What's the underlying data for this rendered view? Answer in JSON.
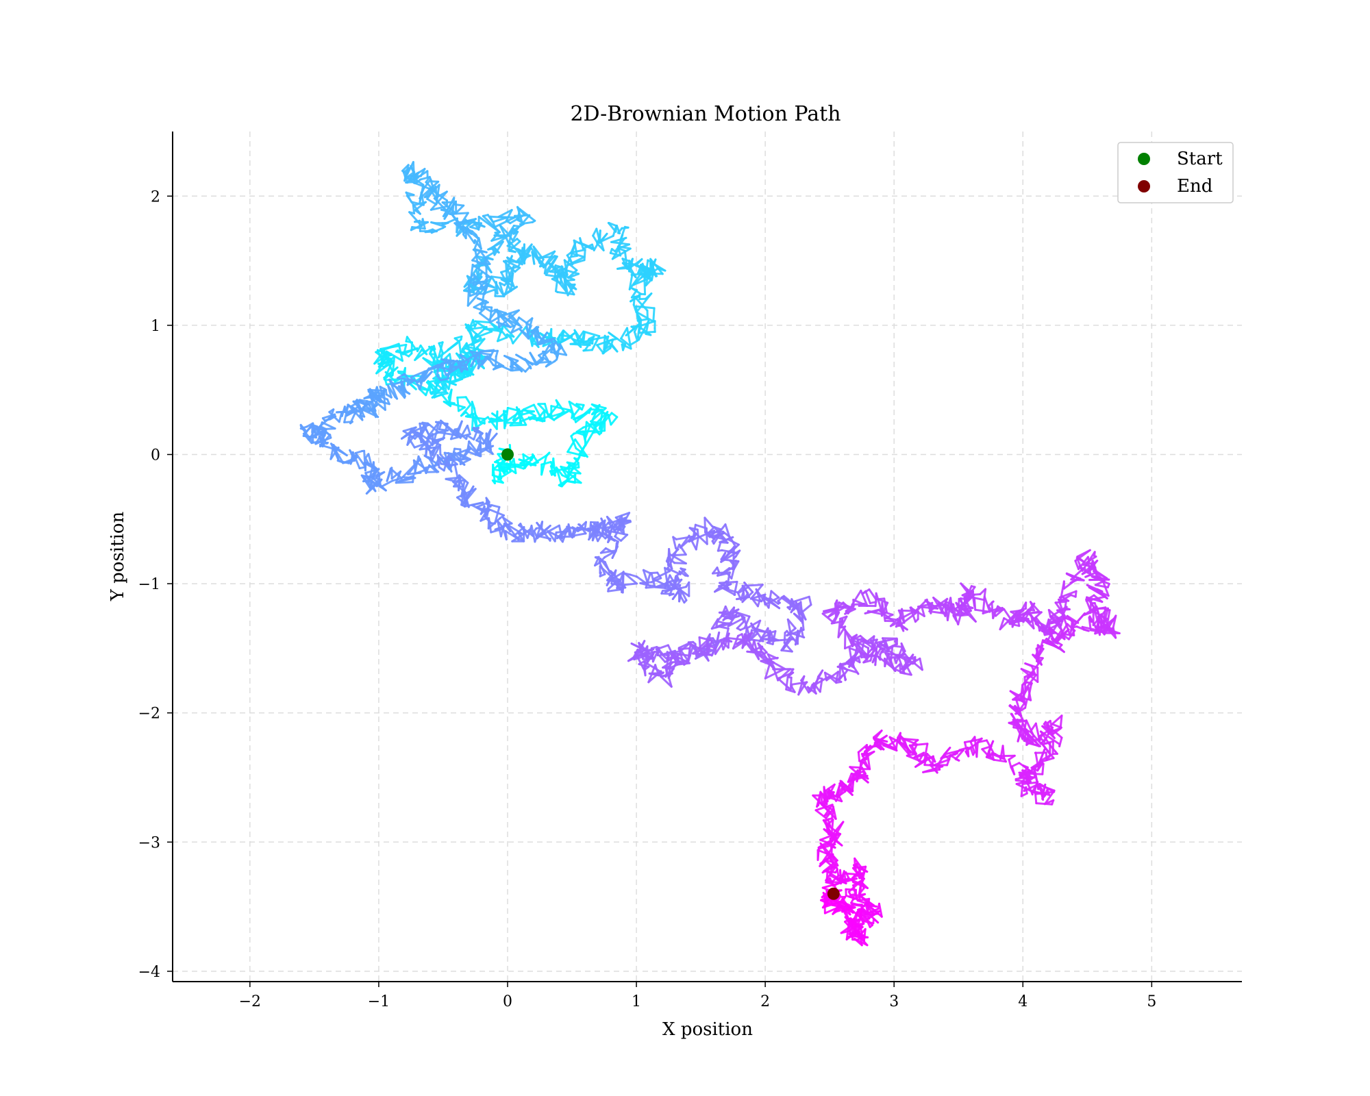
{
  "chart_data": {
    "type": "line",
    "title": "2D-Brownian Motion Path",
    "xlabel": "X position",
    "ylabel": "Y position",
    "xlim": [
      -2.6,
      5.7
    ],
    "ylim": [
      -4.08,
      2.5
    ],
    "xticks": [
      -2,
      -1,
      0,
      1,
      2,
      3,
      4,
      5
    ],
    "yticks": [
      -4,
      -3,
      -2,
      -1,
      0,
      1,
      2
    ],
    "xtick_labels": [
      "−2",
      "−1",
      "0",
      "1",
      "2",
      "3",
      "4",
      "5"
    ],
    "ytick_labels": [
      "−4",
      "−3",
      "−2",
      "−1",
      "0",
      "1",
      "2"
    ],
    "grid": true,
    "grid_style": "dashed",
    "legend_position": "top-right",
    "colormap": "cool",
    "colormap_start": "#00ffff",
    "colormap_end": "#ff00ff",
    "path_waypoints": [
      [
        0,
        0
      ],
      [
        -0.1,
        -0.15
      ],
      [
        0.25,
        -0.05
      ],
      [
        0.5,
        -0.2
      ],
      [
        0.55,
        0.1
      ],
      [
        0.8,
        0.3
      ],
      [
        0.4,
        0.35
      ],
      [
        0.1,
        0.3
      ],
      [
        -0.2,
        0.25
      ],
      [
        -0.5,
        0.5
      ],
      [
        -0.9,
        0.6
      ],
      [
        -1.0,
        0.75
      ],
      [
        -0.75,
        0.85
      ],
      [
        -0.4,
        0.65
      ],
      [
        -0.3,
        0.7
      ],
      [
        -0.55,
        0.5
      ],
      [
        -0.45,
        0.85
      ],
      [
        -0.2,
        0.7
      ],
      [
        -0.3,
        1.0
      ],
      [
        0.2,
        0.9
      ],
      [
        0.5,
        0.9
      ],
      [
        0.8,
        0.85
      ],
      [
        1.1,
        1.0
      ],
      [
        1.0,
        1.35
      ],
      [
        1.15,
        1.45
      ],
      [
        0.9,
        1.45
      ],
      [
        0.85,
        1.75
      ],
      [
        0.55,
        1.6
      ],
      [
        0.45,
        1.3
      ],
      [
        0.3,
        1.5
      ],
      [
        0.05,
        1.6
      ],
      [
        0.0,
        1.3
      ],
      [
        -0.3,
        1.3
      ],
      [
        -0.1,
        1.6
      ],
      [
        0.15,
        1.85
      ],
      [
        -0.3,
        1.75
      ],
      [
        -0.7,
        1.8
      ],
      [
        -0.75,
        2.2
      ],
      [
        -0.6,
        2.05
      ],
      [
        -0.4,
        1.85
      ],
      [
        -0.2,
        1.55
      ],
      [
        -0.25,
        1.15
      ],
      [
        0.1,
        1.0
      ],
      [
        0.4,
        0.8
      ],
      [
        0.1,
        0.7
      ],
      [
        -0.2,
        0.75
      ],
      [
        -0.5,
        0.65
      ],
      [
        -0.8,
        0.55
      ],
      [
        -1.0,
        0.45
      ],
      [
        -1.1,
        0.35
      ],
      [
        -1.3,
        0.3
      ],
      [
        -1.55,
        0.2
      ],
      [
        -1.4,
        0.05
      ],
      [
        -1.1,
        -0.05
      ],
      [
        -1.05,
        -0.25
      ],
      [
        -0.7,
        -0.1
      ],
      [
        -0.4,
        -0.05
      ],
      [
        -0.1,
        0.1
      ],
      [
        -0.45,
        0.2
      ],
      [
        -0.75,
        0.15
      ],
      [
        -0.55,
        0.05
      ],
      [
        -0.35,
        -0.3
      ],
      [
        -0.15,
        -0.45
      ],
      [
        0.0,
        -0.6
      ],
      [
        0.3,
        -0.6
      ],
      [
        0.6,
        -0.6
      ],
      [
        0.75,
        -0.6
      ],
      [
        0.9,
        -0.5
      ],
      [
        0.75,
        -0.85
      ],
      [
        0.85,
        -1.0
      ],
      [
        1.2,
        -0.95
      ],
      [
        1.35,
        -1.1
      ],
      [
        1.3,
        -0.75
      ],
      [
        1.6,
        -0.55
      ],
      [
        1.75,
        -0.75
      ],
      [
        1.65,
        -1.0
      ],
      [
        1.95,
        -1.1
      ],
      [
        2.3,
        -1.15
      ],
      [
        2.2,
        -1.45
      ],
      [
        1.95,
        -1.4
      ],
      [
        1.7,
        -1.2
      ],
      [
        1.6,
        -1.5
      ],
      [
        1.25,
        -1.55
      ],
      [
        1.0,
        -1.5
      ],
      [
        1.2,
        -1.75
      ],
      [
        1.4,
        -1.55
      ],
      [
        1.8,
        -1.4
      ],
      [
        2.0,
        -1.6
      ],
      [
        2.25,
        -1.8
      ],
      [
        2.6,
        -1.7
      ],
      [
        2.75,
        -1.5
      ],
      [
        2.95,
        -1.45
      ],
      [
        3.15,
        -1.65
      ],
      [
        2.8,
        -1.55
      ],
      [
        2.5,
        -1.25
      ],
      [
        2.8,
        -1.1
      ],
      [
        3.0,
        -1.3
      ],
      [
        3.3,
        -1.15
      ],
      [
        3.55,
        -1.25
      ],
      [
        3.6,
        -1.05
      ],
      [
        3.9,
        -1.3
      ],
      [
        4.05,
        -1.2
      ],
      [
        4.2,
        -1.4
      ],
      [
        4.3,
        -1.2
      ],
      [
        4.45,
        -0.8
      ],
      [
        4.6,
        -0.95
      ],
      [
        4.55,
        -1.2
      ],
      [
        4.7,
        -1.35
      ],
      [
        4.4,
        -1.3
      ],
      [
        4.2,
        -1.5
      ],
      [
        4.0,
        -1.8
      ],
      [
        3.95,
        -2.05
      ],
      [
        4.05,
        -2.2
      ],
      [
        4.25,
        -2.1
      ],
      [
        4.15,
        -2.4
      ],
      [
        4.0,
        -2.55
      ],
      [
        4.2,
        -2.65
      ],
      [
        3.85,
        -2.3
      ],
      [
        3.6,
        -2.25
      ],
      [
        3.3,
        -2.4
      ],
      [
        3.1,
        -2.25
      ],
      [
        2.85,
        -2.2
      ],
      [
        2.75,
        -2.45
      ],
      [
        2.6,
        -2.6
      ],
      [
        2.4,
        -2.65
      ],
      [
        2.55,
        -2.9
      ],
      [
        2.45,
        -3.1
      ],
      [
        2.55,
        -3.3
      ],
      [
        2.75,
        -3.2
      ],
      [
        2.7,
        -3.45
      ],
      [
        2.85,
        -3.55
      ],
      [
        2.65,
        -3.65
      ],
      [
        2.75,
        -3.75
      ],
      [
        2.65,
        -3.55
      ],
      [
        2.5,
        -3.45
      ],
      [
        2.53,
        -3.4
      ]
    ],
    "series": [
      {
        "name": "Start",
        "x": [
          0.0
        ],
        "y": [
          0.0
        ],
        "color": "#008000"
      },
      {
        "name": "End",
        "x": [
          2.53
        ],
        "y": [
          -3.4
        ],
        "color": "#800000"
      }
    ]
  }
}
